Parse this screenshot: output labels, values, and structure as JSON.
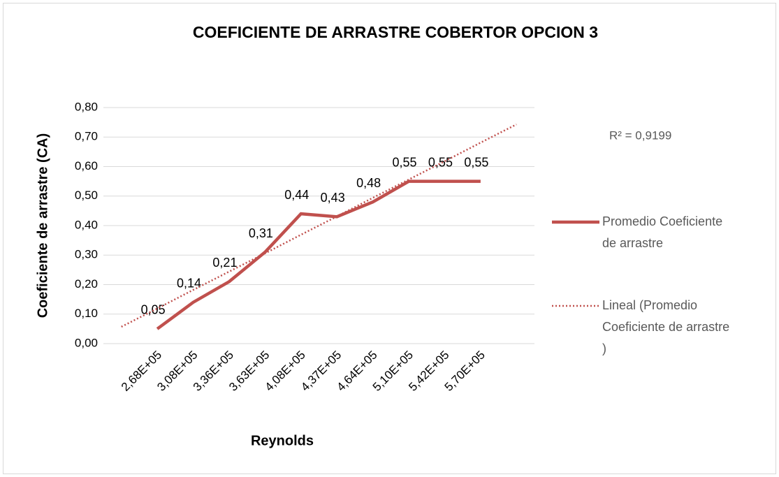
{
  "chart_data": {
    "type": "line",
    "title": "COEFICIENTE DE ARRASTRE  COBERTOR OPCION 3",
    "x_label": "Reynolds",
    "y_label": "Coeficiente de arrastre  (CA)",
    "categories": [
      null,
      "2,68E+05",
      "3,08E+05",
      "3,36E+05",
      "3,63E+05",
      "4,08E+05",
      "4,37E+05",
      "4,64E+05",
      "5,10E+05",
      "5,42E+05",
      "5,70E+05",
      null
    ],
    "series": [
      {
        "name": "Promedio Coeficiente de arrastre",
        "color": "#c0504d",
        "style": "solid",
        "values": [
          null,
          0.05,
          0.14,
          0.21,
          0.31,
          0.44,
          0.43,
          0.48,
          0.55,
          0.55,
          0.55,
          null
        ],
        "value_labels": [
          null,
          "0,05",
          "0,14",
          "0,21",
          "0,31",
          "0,44",
          "0,43",
          "0,48",
          "0,55",
          "0,55",
          "0,55",
          null
        ]
      },
      {
        "name": "Lineal (Promedio Coeficiente de arrastre )",
        "color": "#c0504d",
        "style": "dotted",
        "values": [
          0.057,
          0.119,
          0.182,
          0.244,
          0.306,
          0.369,
          0.431,
          0.494,
          0.556,
          0.618,
          0.681,
          0.743
        ]
      }
    ],
    "annotation": "R² = 0,9199",
    "ylim": [
      0,
      0.8
    ],
    "yticks": [
      {
        "value": 0,
        "label": "0,00"
      },
      {
        "value": 0.1,
        "label": "0,10"
      },
      {
        "value": 0.2,
        "label": "0,20"
      },
      {
        "value": 0.3,
        "label": "0,30"
      },
      {
        "value": 0.4,
        "label": "0,40"
      },
      {
        "value": 0.5,
        "label": "0,50"
      },
      {
        "value": 0.6,
        "label": "0,60"
      },
      {
        "value": 0.7,
        "label": "0,70"
      },
      {
        "value": 0.8,
        "label": "0,80"
      }
    ],
    "grid": true,
    "legend": "right"
  }
}
